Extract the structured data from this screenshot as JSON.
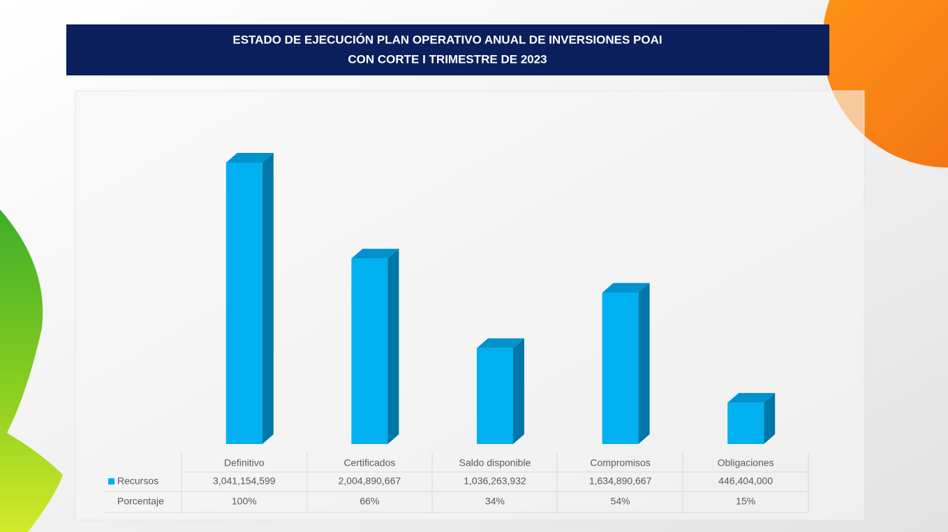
{
  "chart_data": {
    "type": "bar3d",
    "title": "ESTADO DE EJECUCIÓN PLAN OPERATIVO ANUAL DE INVERSIONES  POAI",
    "subtitle": "CON CORTE I TRIMESTRE DE 2023",
    "categories": [
      "Definitivo",
      "Certificados",
      "Saldo disponible",
      "Compromisos",
      "Obligaciones"
    ],
    "series": [
      {
        "name": "Recursos",
        "color": "#00b0f0",
        "values": [
          3041154599,
          2004890667,
          1036263932,
          1634890667,
          446404000
        ],
        "value_labels": [
          "3,041,154,599",
          "2,004,890,667",
          "1,036,263,932",
          "1,634,890,667",
          "446,404,000"
        ]
      }
    ],
    "table_row": {
      "name": "Porcentaje",
      "values": [
        100,
        66,
        34,
        54,
        15
      ],
      "value_labels": [
        "100%",
        "66%",
        "34%",
        "54%",
        "15%"
      ]
    }
  }
}
